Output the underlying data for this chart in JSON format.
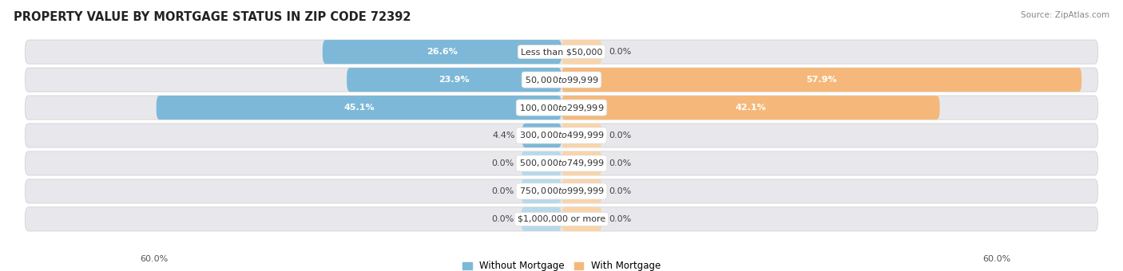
{
  "title": "PROPERTY VALUE BY MORTGAGE STATUS IN ZIP CODE 72392",
  "source": "Source: ZipAtlas.com",
  "categories": [
    "Less than $50,000",
    "$50,000 to $99,999",
    "$100,000 to $299,999",
    "$300,000 to $499,999",
    "$500,000 to $749,999",
    "$750,000 to $999,999",
    "$1,000,000 or more"
  ],
  "without_mortgage": [
    26.6,
    23.9,
    45.1,
    4.4,
    0.0,
    0.0,
    0.0
  ],
  "with_mortgage": [
    0.0,
    57.9,
    42.1,
    0.0,
    0.0,
    0.0,
    0.0
  ],
  "axis_limit": 60.0,
  "color_without": "#7db8d8",
  "color_with": "#f5b87a",
  "color_without_light": "#b8d9ec",
  "color_with_light": "#f9d4aa",
  "row_bg": "#e8e8ec",
  "label_fontsize": 8.0,
  "cat_fontsize": 8.0,
  "title_fontsize": 10.5,
  "legend_label_without": "Without Mortgage",
  "legend_label_with": "With Mortgage",
  "axis_label_left": "60.0%",
  "axis_label_right": "60.0%",
  "value_inside_threshold": 6.0,
  "zero_bar_width": 4.5
}
